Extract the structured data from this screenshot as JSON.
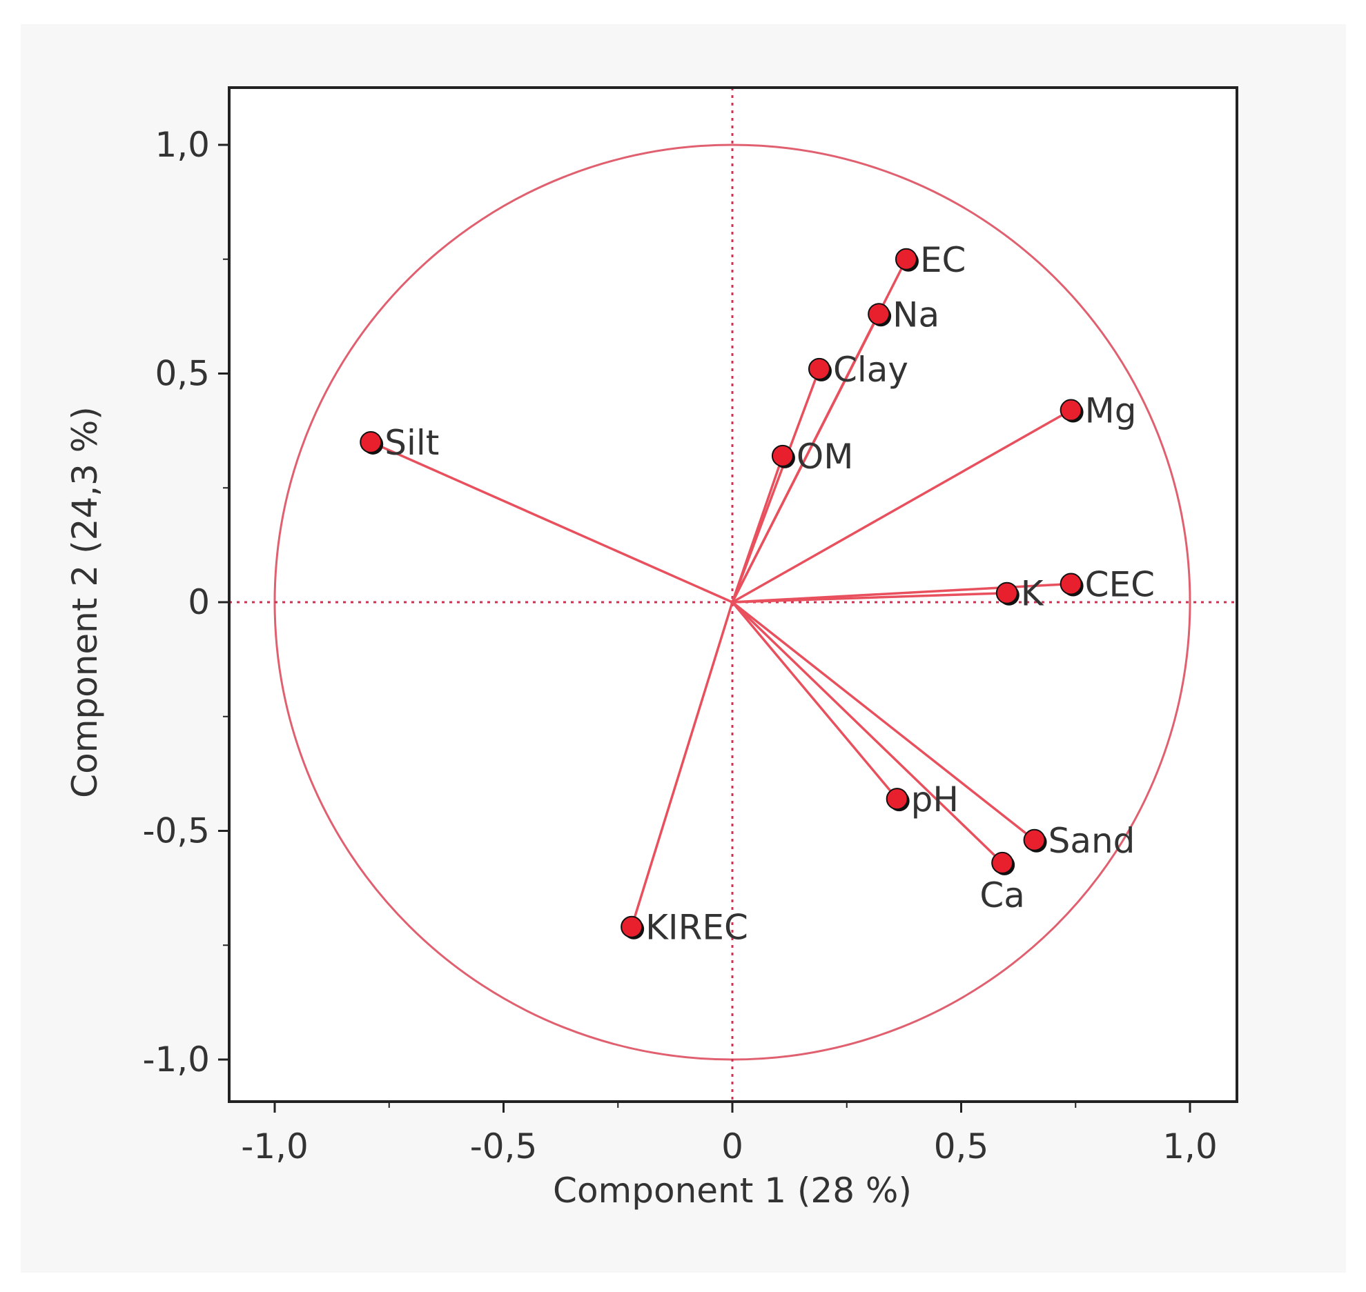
{
  "chart_data": {
    "type": "scatter",
    "subtype": "pca-loading-plot",
    "title": "",
    "xlabel": "Component 1  (28 %)",
    "ylabel": "Component 2  (24,3 %)",
    "xlim": [
      -1.1,
      1.1
    ],
    "ylim": [
      -1.1,
      1.1
    ],
    "x_ticks": [
      {
        "value": -1.0,
        "label": "-1,0"
      },
      {
        "value": -0.5,
        "label": "-0,5"
      },
      {
        "value": 0,
        "label": "0"
      },
      {
        "value": 0.5,
        "label": "0,5"
      },
      {
        "value": 1.0,
        "label": "1,0"
      }
    ],
    "y_ticks": [
      {
        "value": 1.0,
        "label": "1,0"
      },
      {
        "value": 0.5,
        "label": "0,5"
      },
      {
        "value": 0,
        "label": "0"
      },
      {
        "value": -0.5,
        "label": "-0,5"
      },
      {
        "value": -1.0,
        "label": "-1,0"
      }
    ],
    "minor_ticks": [
      -0.75,
      -0.25,
      0.25,
      0.75
    ],
    "unit_circle_radius": 1.0,
    "reference_lines": {
      "x": 0,
      "y": 0,
      "style": "dotted"
    },
    "points": [
      {
        "name": "EC",
        "x": 0.38,
        "y": 0.75,
        "label_pos": "right"
      },
      {
        "name": "Na",
        "x": 0.32,
        "y": 0.63,
        "label_pos": "right"
      },
      {
        "name": "Clay",
        "x": 0.19,
        "y": 0.51,
        "label_pos": "right"
      },
      {
        "name": "OM",
        "x": 0.11,
        "y": 0.32,
        "label_pos": "right"
      },
      {
        "name": "Mg",
        "x": 0.74,
        "y": 0.42,
        "label_pos": "right"
      },
      {
        "name": "Silt",
        "x": -0.79,
        "y": 0.35,
        "label_pos": "right"
      },
      {
        "name": "K",
        "x": 0.6,
        "y": 0.02,
        "label_pos": "right"
      },
      {
        "name": "CEC",
        "x": 0.74,
        "y": 0.04,
        "label_pos": "right"
      },
      {
        "name": "pH",
        "x": 0.36,
        "y": -0.43,
        "label_pos": "right"
      },
      {
        "name": "Sand",
        "x": 0.66,
        "y": -0.52,
        "label_pos": "right"
      },
      {
        "name": "Ca",
        "x": 0.59,
        "y": -0.57,
        "label_pos": "below"
      },
      {
        "name": "KIREC",
        "x": -0.22,
        "y": -0.71,
        "label_pos": "right"
      }
    ],
    "colors": {
      "vector": "#e8505e",
      "circle": "#e06070",
      "reference": "#d03050",
      "point_fill": "#e8202e",
      "point_shadow": "#111111",
      "axis": "#222222",
      "text": "#333333"
    }
  }
}
